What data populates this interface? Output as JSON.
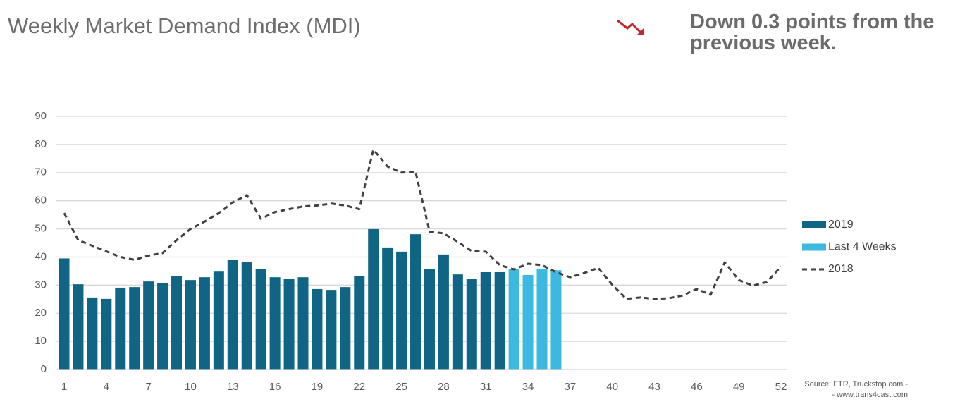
{
  "title": "Weekly Market Demand Index (MDI)",
  "annotation": [
    "Down 0.3 points from the",
    "previous week."
  ],
  "source": [
    "Source: FTR, Truckstop.com -",
    "- www.trans4cast.com"
  ],
  "chart_data": {
    "type": "bar",
    "categories": [
      1,
      null,
      null,
      4,
      null,
      null,
      7,
      null,
      null,
      10,
      null,
      null,
      13,
      null,
      null,
      16,
      null,
      null,
      19,
      null,
      null,
      22,
      null,
      null,
      25,
      null,
      null,
      28,
      null,
      null,
      31,
      null,
      null,
      34,
      null,
      null,
      37,
      null,
      null,
      40,
      null,
      null,
      43,
      null,
      null,
      46,
      null,
      null,
      49,
      null,
      null,
      52
    ],
    "ylim": [
      0,
      90
    ],
    "yticks": [
      0,
      10,
      20,
      30,
      40,
      50,
      60,
      70,
      80,
      90
    ],
    "grid": true,
    "legend": "right",
    "series": [
      {
        "name": "2019",
        "type": "bar",
        "color": "#0f6583",
        "values": [
          39.5,
          30.3,
          25.6,
          25.1,
          29.1,
          29.3,
          31.3,
          30.8,
          33.1,
          31.8,
          32.8,
          34.8,
          39.1,
          38.1,
          35.8,
          32.8,
          32.1,
          32.8,
          28.6,
          28.3,
          29.3,
          33.3,
          49.9,
          43.4,
          41.9,
          48.1,
          35.6,
          40.9,
          33.8,
          32.3,
          34.6,
          34.6,
          null,
          null,
          null,
          null,
          null,
          null,
          null,
          null,
          null,
          null,
          null,
          null,
          null,
          null,
          null,
          null,
          null,
          null,
          null,
          null
        ]
      },
      {
        "name": "Last 4 Weeks",
        "type": "bar",
        "color": "#3db8e0",
        "values": [
          null,
          null,
          null,
          null,
          null,
          null,
          null,
          null,
          null,
          null,
          null,
          null,
          null,
          null,
          null,
          null,
          null,
          null,
          null,
          null,
          null,
          null,
          null,
          null,
          null,
          null,
          null,
          null,
          null,
          null,
          null,
          null,
          35.8,
          33.6,
          35.6,
          35.3,
          null,
          null,
          null,
          null,
          null,
          null,
          null,
          null,
          null,
          null,
          null,
          null,
          null,
          null,
          null,
          null
        ]
      },
      {
        "name": "2018",
        "type": "line",
        "color": "#404040",
        "dashed": true,
        "values": [
          55.6,
          46,
          44,
          42,
          40,
          39,
          40.5,
          41.4,
          46,
          50,
          52.6,
          55.6,
          59.4,
          62,
          53.6,
          56,
          57,
          58,
          58.3,
          59,
          58.3,
          57,
          78.2,
          72.2,
          70,
          70.3,
          49,
          48.4,
          45.4,
          42.1,
          41.9,
          37.1,
          35.6,
          37.6,
          37.1,
          34.6,
          32.8,
          34.3,
          36.1,
          30.1,
          25.1,
          25.6,
          25.1,
          25.3,
          26.3,
          28.6,
          26.6,
          38.1,
          31.8,
          29.8,
          31.1,
          36.6
        ]
      }
    ]
  }
}
